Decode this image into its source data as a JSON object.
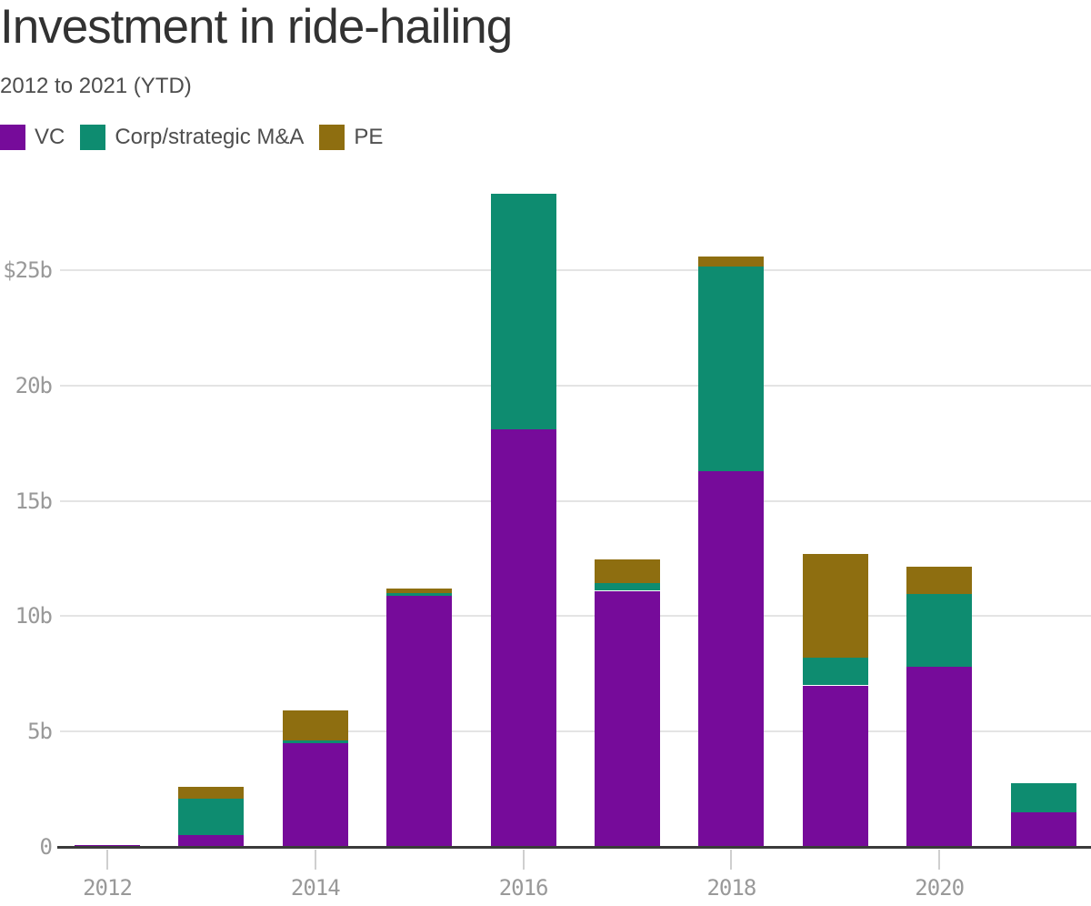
{
  "header": {
    "title": "Investment in ride-hailing",
    "subtitle": "2012 to 2021 (YTD)"
  },
  "legend": [
    {
      "key": "vc",
      "label": "VC",
      "color": "#760B9A"
    },
    {
      "key": "ma",
      "label": "Corp/strategic M&A",
      "color": "#0E8C70"
    },
    {
      "key": "pe",
      "label": "PE",
      "color": "#8E6E10"
    }
  ],
  "chart_data": {
    "type": "bar",
    "stacked": true,
    "title": "Investment in ride-hailing",
    "subtitle": "2012 to 2021 (YTD)",
    "unit": "USD billions",
    "value_format": "$<n>b",
    "categories": [
      2012,
      2013,
      2014,
      2015,
      2016,
      2017,
      2018,
      2019,
      2020,
      2021
    ],
    "series": [
      {
        "key": "vc",
        "name": "VC",
        "color": "#760B9A",
        "values": [
          0.1,
          0.5,
          4.5,
          10.9,
          18.1,
          11.1,
          16.3,
          7.0,
          7.8,
          1.5
        ]
      },
      {
        "key": "ma",
        "name": "Corp/strategic M&A",
        "color": "#0E8C70",
        "values": [
          0,
          1.6,
          0.1,
          0.1,
          10.2,
          0.35,
          8.85,
          1.2,
          3.15,
          1.25
        ]
      },
      {
        "key": "pe",
        "name": "PE",
        "color": "#8E6E10",
        "values": [
          0,
          0.5,
          1.3,
          0.2,
          0,
          1.0,
          0.45,
          4.5,
          1.2,
          0
        ]
      }
    ],
    "totals": [
      0.1,
      2.6,
      5.9,
      11.2,
      28.3,
      12.45,
      25.6,
      12.7,
      12.15,
      2.75
    ],
    "y_ticks": [
      {
        "label": "$25b",
        "value": 25
      },
      {
        "label": "20b",
        "value": 20
      },
      {
        "label": "15b",
        "value": 15
      },
      {
        "label": "10b",
        "value": 10
      },
      {
        "label": "5b",
        "value": 5
      },
      {
        "label": "0",
        "value": 0
      }
    ],
    "x_ticks": [
      {
        "label": "2012",
        "value": 2012
      },
      {
        "label": "2014",
        "value": 2014
      },
      {
        "label": "2016",
        "value": 2016
      },
      {
        "label": "2018",
        "value": 2018
      },
      {
        "label": "2020",
        "value": 2020
      }
    ],
    "ylim": [
      0,
      28.5
    ],
    "grid": "horizontal",
    "legend_position": "top-left"
  }
}
